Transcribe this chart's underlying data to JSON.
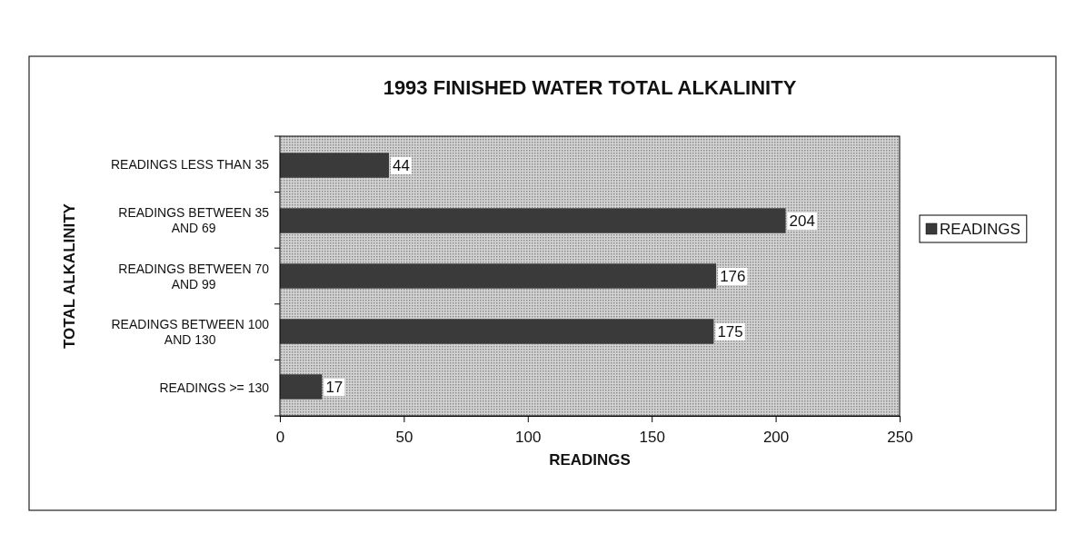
{
  "chart_data": {
    "type": "bar",
    "orientation": "horizontal",
    "title": "1993 FINISHED WATER TOTAL ALKALINITY",
    "xlabel": "READINGS",
    "ylabel": "TOTAL ALKALINITY",
    "categories": [
      "READINGS LESS THAN 35",
      "READINGS BETWEEN 35 AND 69",
      "READINGS BETWEEN 70 AND 99",
      "READINGS BETWEEN 100 AND 130",
      "READINGS >= 130"
    ],
    "series": [
      {
        "name": "READINGS",
        "color": "#3a3a3a",
        "values": [
          44,
          204,
          176,
          175,
          17
        ]
      }
    ],
    "xlim": [
      0,
      250
    ],
    "xticks": [
      0,
      50,
      100,
      150,
      200,
      250
    ],
    "data_labels": true,
    "legend": "right"
  }
}
